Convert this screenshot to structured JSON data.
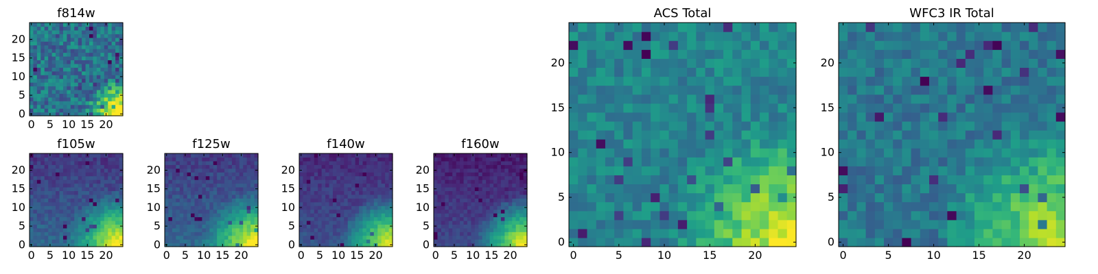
{
  "figure": {
    "background": "#ffffff"
  },
  "colormap": {
    "name": "viridis",
    "stops": [
      "#440154",
      "#482878",
      "#3e4989",
      "#31688e",
      "#26828e",
      "#1f9e89",
      "#35b779",
      "#6ece58",
      "#b5de2b",
      "#fde725"
    ]
  },
  "chart_data": [
    {
      "type": "heatmap",
      "title": "f814w",
      "x_ticks": [
        0,
        5,
        10,
        15,
        20
      ],
      "y_ticks": [
        0,
        5,
        10,
        15,
        20
      ],
      "xlim": [
        0,
        24
      ],
      "ylim": [
        0,
        24
      ],
      "grid": false,
      "pattern": {
        "base": 0.38,
        "gradient": 0.0,
        "corner": 0.85,
        "corner_radius": 10,
        "noise": 0.35,
        "seed": 3
      }
    },
    {
      "type": "heatmap",
      "title": "f105w",
      "x_ticks": [
        0,
        5,
        10,
        15,
        20
      ],
      "y_ticks": [
        0,
        5,
        10,
        15,
        20
      ],
      "xlim": [
        0,
        24
      ],
      "ylim": [
        0,
        24
      ],
      "grid": false,
      "pattern": {
        "base": 0.16,
        "gradient": 0.18,
        "corner": 0.72,
        "corner_radius": 15,
        "noise": 0.14,
        "seed": 11
      }
    },
    {
      "type": "heatmap",
      "title": "f125w",
      "x_ticks": [
        0,
        5,
        10,
        15,
        20
      ],
      "y_ticks": [
        0,
        5,
        10,
        15,
        20
      ],
      "xlim": [
        0,
        24
      ],
      "ylim": [
        0,
        24
      ],
      "grid": false,
      "pattern": {
        "base": 0.18,
        "gradient": 0.16,
        "corner": 0.72,
        "corner_radius": 15,
        "noise": 0.14,
        "seed": 23
      }
    },
    {
      "type": "heatmap",
      "title": "f140w",
      "x_ticks": [
        0,
        5,
        10,
        15,
        20
      ],
      "y_ticks": [
        0,
        5,
        10,
        15,
        20
      ],
      "xlim": [
        0,
        24
      ],
      "ylim": [
        0,
        24
      ],
      "grid": false,
      "pattern": {
        "base": 0.12,
        "gradient": 0.14,
        "corner": 0.78,
        "corner_radius": 14,
        "noise": 0.12,
        "seed": 37
      }
    },
    {
      "type": "heatmap",
      "title": "f160w",
      "x_ticks": [
        0,
        5,
        10,
        15,
        20
      ],
      "y_ticks": [
        0,
        5,
        10,
        15,
        20
      ],
      "xlim": [
        0,
        24
      ],
      "ylim": [
        0,
        24
      ],
      "grid": false,
      "pattern": {
        "base": 0.08,
        "gradient": 0.14,
        "corner": 0.82,
        "corner_radius": 14,
        "noise": 0.12,
        "seed": 51
      }
    },
    {
      "type": "heatmap",
      "title": "ACS Total",
      "x_ticks": [
        0,
        5,
        10,
        15,
        20
      ],
      "y_ticks": [
        0,
        5,
        10,
        15,
        20
      ],
      "xlim": [
        0,
        24
      ],
      "ylim": [
        0,
        24
      ],
      "grid": false,
      "pattern": {
        "base": 0.45,
        "gradient": 0.0,
        "corner": 0.55,
        "corner_radius": 14,
        "noise": 0.22,
        "seed": 67
      }
    },
    {
      "type": "heatmap",
      "title": "WFC3 IR Total",
      "x_ticks": [
        0,
        5,
        10,
        15,
        20
      ],
      "y_ticks": [
        0,
        5,
        10,
        15,
        20
      ],
      "xlim": [
        0,
        24
      ],
      "ylim": [
        0,
        24
      ],
      "grid": false,
      "pattern": {
        "base": 0.4,
        "gradient": 0.0,
        "corner": 0.55,
        "corner_radius": 14,
        "noise": 0.22,
        "seed": 89
      }
    }
  ]
}
